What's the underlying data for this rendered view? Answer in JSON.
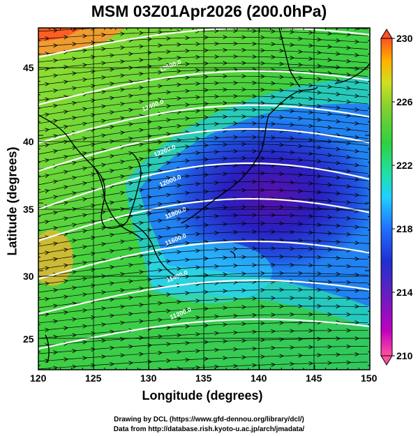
{
  "title": "MSM 03Z01Apr2026 (200.0hPa)",
  "axes": {
    "xlabel": "Longitude (degrees)",
    "ylabel": "Latitude  (degrees)",
    "xticks": [
      "120",
      "125",
      "130",
      "135",
      "140",
      "145",
      "150"
    ],
    "yticks": [
      "25",
      "30",
      "35",
      "40",
      "45"
    ]
  },
  "colorbar": {
    "labels": [
      "230",
      "226",
      "222",
      "218",
      "214",
      "210"
    ],
    "range": [
      210,
      230
    ],
    "colors": [
      "#ff50a0",
      "#c000c0",
      "#6020c0",
      "#2030d0",
      "#2070ff",
      "#20d0ff",
      "#20e0a0",
      "#30d040",
      "#80d030",
      "#d0e020",
      "#ffb000",
      "#ff5020"
    ]
  },
  "contour_labels": [
    "12600.0",
    "12400.0",
    "12200.0",
    "12000.0",
    "11800.0",
    "11600.0",
    "11400.0",
    "11200.0"
  ],
  "credits": {
    "line1": "Drawing by DCL (https://www.gfd-dennou.org/library/dcl/)",
    "line2": "Data from http://database.rish.kyoto-u.ac.jp/arch/jmadata/"
  }
}
